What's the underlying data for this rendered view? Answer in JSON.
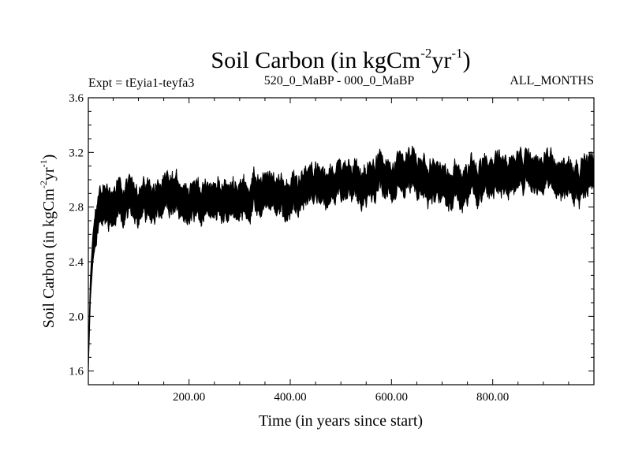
{
  "chart_data": {
    "type": "line",
    "title_main": "Soil Carbon (in kgCm",
    "title_sup1": "-2",
    "title_mid": "yr",
    "title_sup2": "-1",
    "title_end": ")",
    "subtitle_left": "Expt = tEyia1-teyfa3",
    "subtitle_center": "520_0_MaBP - 000_0_MaBP",
    "subtitle_right": "ALL_MONTHS",
    "xlabel": "Time (in years since start)",
    "ylabel_main": "Soil Carbon (in kgCm",
    "ylabel_sup1": "-2",
    "ylabel_mid": "yr",
    "ylabel_sup2": "-1",
    "ylabel_end": ")",
    "xlim": [
      1,
      1000
    ],
    "ylim": [
      1.5,
      3.6
    ],
    "x_ticks": [
      200,
      400,
      600,
      800
    ],
    "x_tick_labels": [
      "200.00",
      "400.00",
      "600.00",
      "800.00"
    ],
    "y_ticks": [
      1.6,
      2.0,
      2.4,
      2.8,
      3.2,
      3.6
    ],
    "y_tick_labels": [
      "1.6",
      "2.0",
      "2.4",
      "2.8",
      "3.2",
      "3.6"
    ],
    "series": [
      {
        "name": "Soil Carbon",
        "color": "#000000",
        "x": [
          1,
          5,
          10,
          15,
          20,
          25,
          30,
          40,
          50,
          60,
          80,
          100,
          150,
          200,
          250,
          300,
          350,
          400,
          450,
          500,
          550,
          600,
          650,
          680,
          700,
          750,
          800,
          850,
          900,
          950,
          1000
        ],
        "mean": [
          1.65,
          2.2,
          2.5,
          2.66,
          2.74,
          2.78,
          2.82,
          2.84,
          2.85,
          2.84,
          2.83,
          2.84,
          2.84,
          2.87,
          2.86,
          2.84,
          2.86,
          2.88,
          2.96,
          2.98,
          2.98,
          3.01,
          3.02,
          2.93,
          2.96,
          2.98,
          3.08,
          3.06,
          3.03,
          3.04,
          3.05
        ],
        "band_halfwidth": [
          0.05,
          0.08,
          0.1,
          0.11,
          0.12,
          0.12,
          0.12,
          0.12,
          0.12,
          0.12,
          0.11,
          0.11,
          0.11,
          0.11,
          0.11,
          0.11,
          0.11,
          0.11,
          0.11,
          0.11,
          0.11,
          0.11,
          0.12,
          0.12,
          0.11,
          0.11,
          0.12,
          0.11,
          0.11,
          0.11,
          0.11
        ]
      }
    ]
  }
}
